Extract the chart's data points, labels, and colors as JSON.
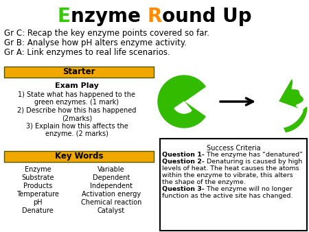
{
  "title_parts": [
    {
      "text": "E",
      "color": "#33cc00",
      "bold": true
    },
    {
      "text": "nzyme ",
      "color": "#000000",
      "bold": true
    },
    {
      "text": "R",
      "color": "#ff8c00",
      "bold": true
    },
    {
      "text": "ound Up",
      "color": "#000000",
      "bold": true
    }
  ],
  "subtitle_lines": [
    "Gr C: Recap the key enzyme points covered so far.",
    "Gr B: Analyse how pH alters enzyme activity.",
    "Gr A: Link enzymes to real life scenarios."
  ],
  "starter_label": "Starter",
  "starter_bg": "#f0a800",
  "exam_play_title": "Exam Play",
  "exam_play_lines": [
    "1) State what has happened to the",
    "green enzymes. (1 mark)",
    "2) Describe how this has happened",
    "(2marks)",
    "3) Explain how this affects the",
    "enzyme. (2 marks)"
  ],
  "key_words_label": "Key Words",
  "key_words_bg": "#f0a800",
  "key_words_col1": [
    "Enzyme",
    "Substrate",
    "Products",
    "Temperature",
    "pH",
    "Denature"
  ],
  "key_words_col2": [
    "Variable",
    "Dependent",
    "Independent",
    "Activation energy",
    "Chemical reaction",
    "Catalyst"
  ],
  "success_title": "Success Criteria",
  "success_q1_bold": "Question 1-",
  "success_q1_normal": " The enzyme has “denatured”",
  "success_q2_bold": "Question 2-",
  "success_q2_normal": " Denaturing is caused by high",
  "success_q2_cont": [
    "levels of heat. The heat causes the atoms",
    "within the enzyme to vibrate, this alters",
    "the shape of the enzyme."
  ],
  "success_q3_bold": "Question 3-",
  "success_q3_normal": " The enzyme will no longer",
  "success_q3_cont": [
    "function as the active site has changed."
  ],
  "enzyme_color": "#33bb00",
  "bg_color": "#ffffff"
}
